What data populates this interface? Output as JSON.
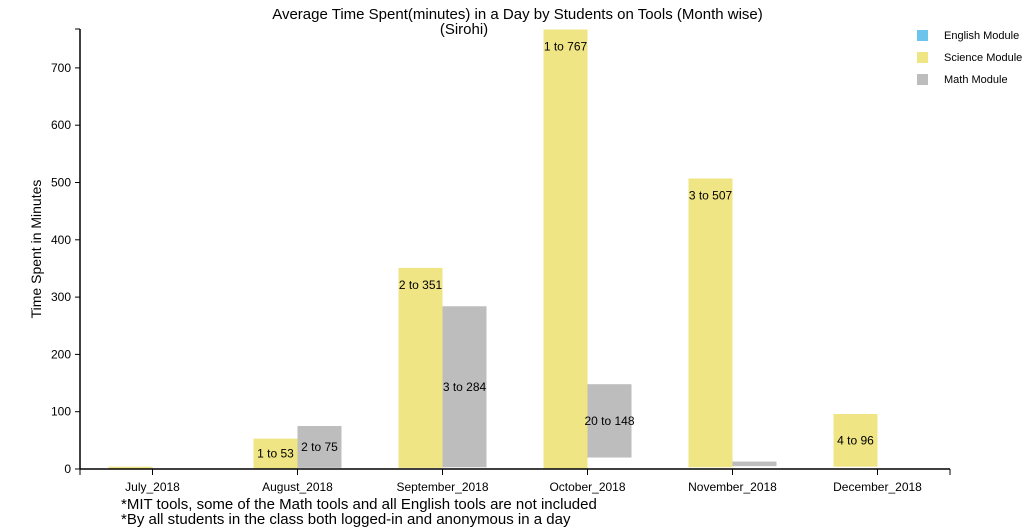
{
  "chart_data": {
    "type": "bar",
    "title": "Average Time Spent(minutes) in a Day by Students on Tools (Month wise)",
    "subtitle": "(Sirohi)",
    "ylabel": "Time Spent in Minutes",
    "xlabel": "",
    "ylim": [
      0,
      780
    ],
    "yticks": [
      0,
      100,
      200,
      300,
      400,
      500,
      600,
      700
    ],
    "categories": [
      "July_2018",
      "August_2018",
      "September_2018",
      "October_2018",
      "November_2018",
      "December_2018"
    ],
    "series": [
      {
        "name": "English Module",
        "color": "#6cc4ec",
        "bars": [
          null,
          null,
          null,
          null,
          null,
          null
        ]
      },
      {
        "name": "Science Module",
        "color": "#efe584",
        "bars": [
          {
            "low": 0,
            "high": 4,
            "label": ""
          },
          {
            "low": 1,
            "high": 53,
            "label": "1 to 53"
          },
          {
            "low": 2,
            "high": 351,
            "label": "2 to 351"
          },
          {
            "low": 1,
            "high": 767,
            "label": "1 to 767"
          },
          {
            "low": 3,
            "high": 507,
            "label": "3 to 507"
          },
          {
            "low": 4,
            "high": 96,
            "label": "4 to 96"
          }
        ]
      },
      {
        "name": "Math Module",
        "color": "#bdbdbd",
        "bars": [
          null,
          {
            "low": 2,
            "high": 75,
            "label": "2 to 75"
          },
          {
            "low": 3,
            "high": 284,
            "label": "3 to 284"
          },
          {
            "low": 20,
            "high": 148,
            "label": "20 to 148"
          },
          {
            "low": 5,
            "high": 13,
            "label": ""
          },
          null
        ]
      }
    ],
    "legend_position": "top-right"
  },
  "footnotes": [
    "*MIT tools, some of the Math tools and all English tools are not included",
    "*By all students in the class both logged-in and anonymous in a day"
  ]
}
